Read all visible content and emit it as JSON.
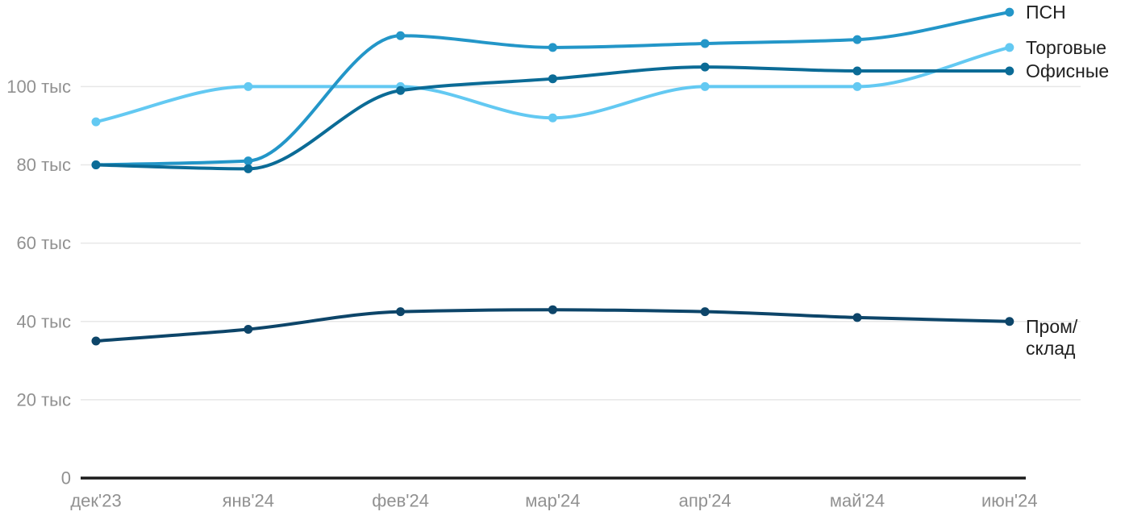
{
  "chart_data": {
    "type": "line",
    "title": "",
    "unit": "тыс",
    "categories": [
      "дек'23",
      "янв'24",
      "фев'24",
      "мар'24",
      "апр'24",
      "май'24",
      "июн'24"
    ],
    "series": [
      {
        "name": "ПСН",
        "label_lines": [
          "ПСН"
        ],
        "color": "#2396c8",
        "values": [
          80,
          81,
          113,
          110,
          111,
          112,
          119
        ]
      },
      {
        "name": "Торговые",
        "label_lines": [
          "Торговые"
        ],
        "color": "#63c9f2",
        "values": [
          91,
          100,
          100,
          92,
          100,
          100,
          110
        ]
      },
      {
        "name": "Офисные",
        "label_lines": [
          "Офисные"
        ],
        "color": "#0b6b96",
        "values": [
          80,
          79,
          99,
          102,
          105,
          104,
          104
        ]
      },
      {
        "name": "Пром/склад",
        "label_lines": [
          "Пром/",
          "склад"
        ],
        "color": "#0d4569",
        "values": [
          35,
          38,
          42.5,
          43,
          42.5,
          41,
          40
        ]
      }
    ],
    "y_ticks": [
      {
        "value": 0,
        "label": "0"
      },
      {
        "value": 20,
        "label": "20 тыс"
      },
      {
        "value": 40,
        "label": "40 тыс"
      },
      {
        "value": 60,
        "label": "60 тыс"
      },
      {
        "value": 80,
        "label": "80 тыс"
      },
      {
        "value": 100,
        "label": "100 тыс"
      }
    ],
    "ylim": [
      0,
      120
    ],
    "grid": true,
    "legend_position": "line-end-right"
  },
  "colors": {
    "background": "#ffffff",
    "gridline": "#e7e7e7",
    "axis_line": "#1b1b1b",
    "tick_label": "#919191",
    "series_label": "#1f1f1f"
  }
}
